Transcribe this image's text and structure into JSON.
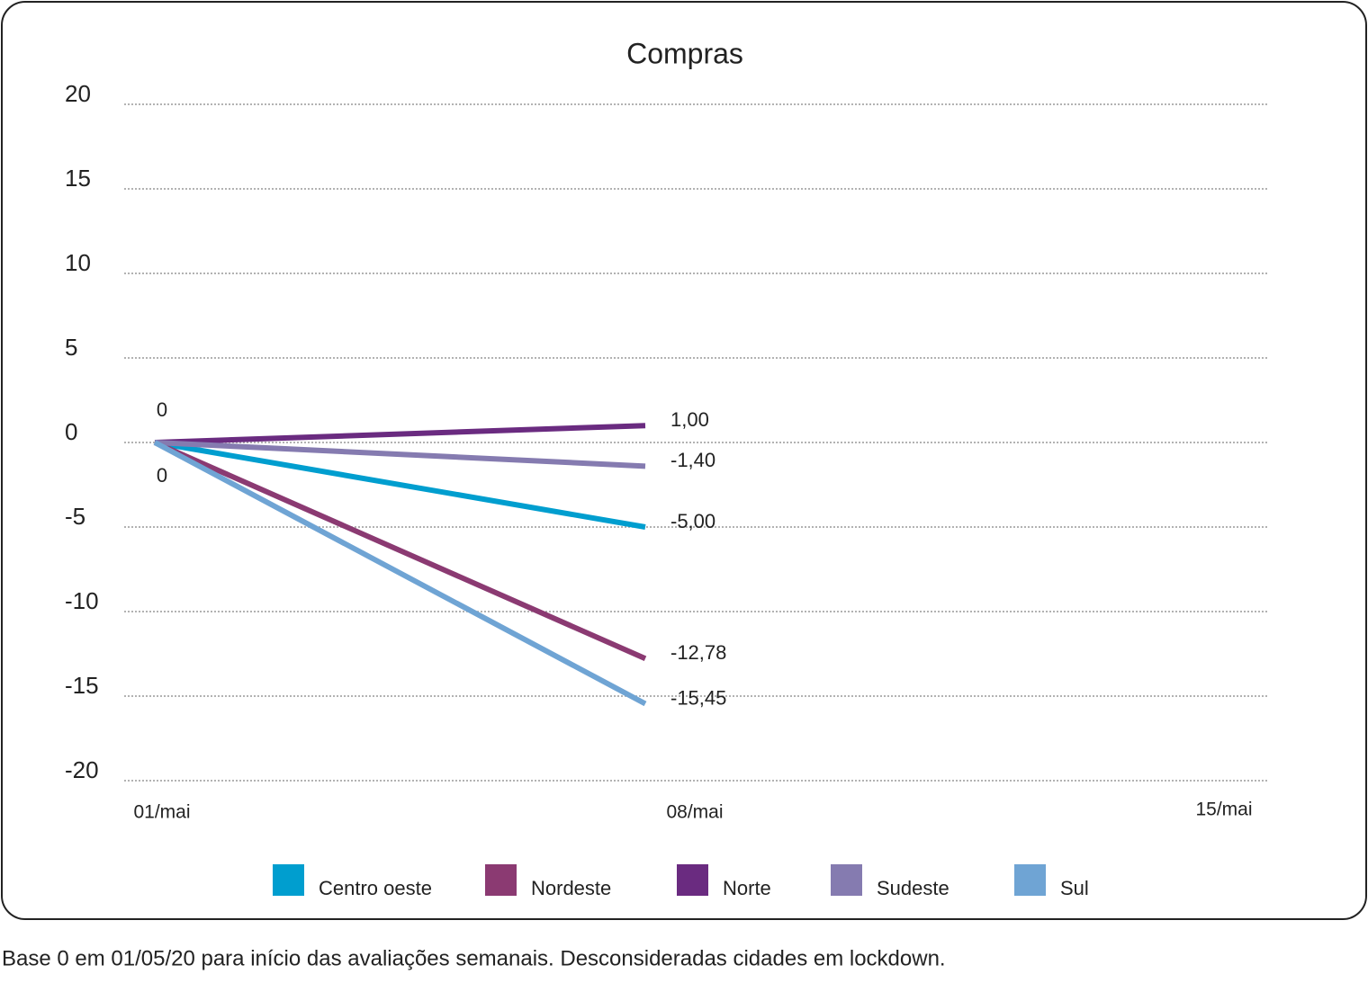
{
  "chart_data": {
    "type": "line",
    "title": "Compras",
    "categories": [
      "01/mai",
      "08/mai",
      "15/mai"
    ],
    "series": [
      {
        "name": "Centro oeste",
        "color": "#009ecf",
        "values": [
          0,
          -5.0,
          null
        ],
        "value_labels": [
          null,
          "-5,00",
          null
        ]
      },
      {
        "name": "Nordeste",
        "color": "#8b3a72",
        "values": [
          0,
          -12.78,
          null
        ],
        "value_labels": [
          null,
          "-12,78",
          null
        ]
      },
      {
        "name": "Norte",
        "color": "#6a2b80",
        "values": [
          0,
          1.0,
          null
        ],
        "value_labels": [
          "0",
          "1,00",
          null
        ]
      },
      {
        "name": "Sudeste",
        "color": "#857bb0",
        "values": [
          0,
          -1.4,
          null
        ],
        "value_labels": [
          null,
          "-1,40",
          null
        ]
      },
      {
        "name": "Sul",
        "color": "#6fa4d4",
        "values": [
          0,
          -15.45,
          null
        ],
        "value_labels": [
          "0",
          "-15,45",
          null
        ]
      }
    ],
    "ylim": [
      -20,
      20
    ],
    "yticks": [
      -20,
      -15,
      -10,
      -5,
      0,
      5,
      10,
      15,
      20
    ],
    "grid": true,
    "legend": "bottom"
  },
  "footnote": "Base 0 em 01/05/20 para início das avaliações semanais. Desconsideradas cidades em lockdown."
}
